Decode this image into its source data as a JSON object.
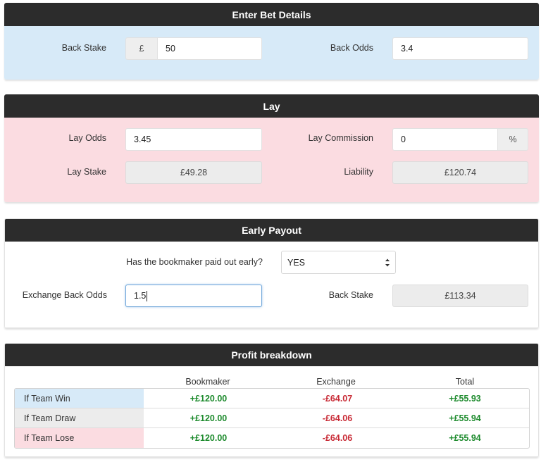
{
  "bet_details": {
    "title": "Enter Bet Details",
    "bg": "#d7eaf8",
    "back_stake_label": "Back Stake",
    "currency_symbol": "£",
    "back_stake_value": "50",
    "back_odds_label": "Back Odds",
    "back_odds_value": "3.4"
  },
  "lay": {
    "title": "Lay",
    "bg": "#fbdce1",
    "lay_odds_label": "Lay Odds",
    "lay_odds_value": "3.45",
    "lay_commission_label": "Lay Commission",
    "lay_commission_value": "0",
    "percent_symbol": "%",
    "lay_stake_label": "Lay Stake",
    "lay_stake_value": "£49.28",
    "liability_label": "Liability",
    "liability_value": "£120.74"
  },
  "early_payout": {
    "title": "Early Payout",
    "question": "Has the bookmaker paid out early?",
    "answer": "YES",
    "exchange_back_odds_label": "Exchange Back Odds",
    "exchange_back_odds_value": "1.5",
    "back_stake_label": "Back Stake",
    "back_stake_value": "£113.34"
  },
  "profit": {
    "title": "Profit breakdown",
    "columns": [
      "Bookmaker",
      "Exchange",
      "Total"
    ],
    "rows": [
      {
        "label": "If Team Win",
        "bg": "#d7eaf8",
        "bookmaker": "+£120.00",
        "exchange": "-£64.07",
        "total": "+£55.93"
      },
      {
        "label": "If Team Draw",
        "bg": "#ececec",
        "bookmaker": "+£120.00",
        "exchange": "-£64.06",
        "total": "+£55.94"
      },
      {
        "label": "If Team Lose",
        "bg": "#fbdce1",
        "bookmaker": "+£120.00",
        "exchange": "-£64.06",
        "total": "+£55.94"
      }
    ]
  },
  "colors": {
    "header_bg": "#2c2c2c",
    "positive": "#1c8a2c",
    "negative": "#c82a35"
  }
}
